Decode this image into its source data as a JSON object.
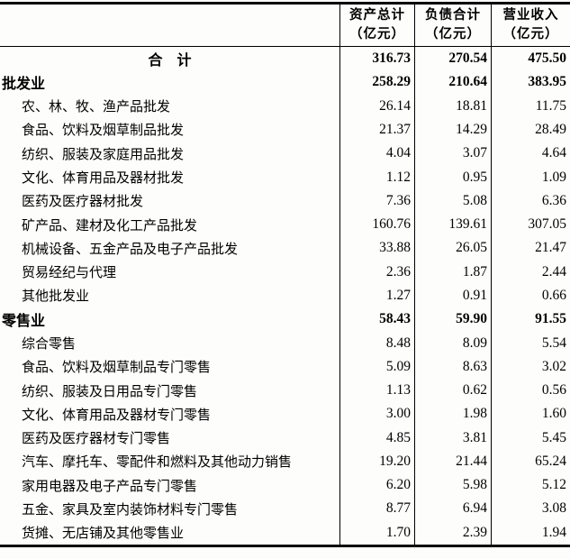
{
  "table": {
    "header": {
      "columns": [
        {
          "title": "资产总计",
          "unit": "（亿元）"
        },
        {
          "title": "负债合计",
          "unit": "（亿元）"
        },
        {
          "title": "营业收入",
          "unit": "（亿元）"
        }
      ]
    },
    "rows": [
      {
        "label": "合　计",
        "level": "total",
        "values": [
          "316.73",
          "270.54",
          "475.50"
        ]
      },
      {
        "label": "批发业",
        "level": "group",
        "values": [
          "258.29",
          "210.64",
          "383.95"
        ]
      },
      {
        "label": "农、林、牧、渔产品批发",
        "level": "item",
        "values": [
          "26.14",
          "18.81",
          "11.75"
        ]
      },
      {
        "label": "食品、饮料及烟草制品批发",
        "level": "item",
        "values": [
          "21.37",
          "14.29",
          "28.49"
        ]
      },
      {
        "label": "纺织、服装及家庭用品批发",
        "level": "item",
        "values": [
          "4.04",
          "3.07",
          "4.64"
        ]
      },
      {
        "label": "文化、体育用品及器材批发",
        "level": "item",
        "values": [
          "1.12",
          "0.95",
          "1.09"
        ]
      },
      {
        "label": "医药及医疗器材批发",
        "level": "item",
        "values": [
          "7.36",
          "5.08",
          "6.36"
        ]
      },
      {
        "label": "矿产品、建材及化工产品批发",
        "level": "item",
        "values": [
          "160.76",
          "139.61",
          "307.05"
        ]
      },
      {
        "label": "机械设备、五金产品及电子产品批发",
        "level": "item",
        "values": [
          "33.88",
          "26.05",
          "21.47"
        ]
      },
      {
        "label": "贸易经纪与代理",
        "level": "item",
        "values": [
          "2.36",
          "1.87",
          "2.44"
        ]
      },
      {
        "label": "其他批发业",
        "level": "item",
        "values": [
          "1.27",
          "0.91",
          "0.66"
        ]
      },
      {
        "label": "零售业",
        "level": "group",
        "values": [
          "58.43",
          "59.90",
          "91.55"
        ]
      },
      {
        "label": "综合零售",
        "level": "item",
        "values": [
          "8.48",
          "8.09",
          "5.54"
        ]
      },
      {
        "label": "食品、饮料及烟草制品专门零售",
        "level": "item",
        "values": [
          "5.09",
          "8.63",
          "3.02"
        ]
      },
      {
        "label": "纺织、服装及日用品专门零售",
        "level": "item",
        "values": [
          "1.13",
          "0.62",
          "0.56"
        ]
      },
      {
        "label": "文化、体育用品及器材专门零售",
        "level": "item",
        "values": [
          "3.00",
          "1.98",
          "1.60"
        ]
      },
      {
        "label": "医药及医疗器材专门零售",
        "level": "item",
        "values": [
          "4.85",
          "3.81",
          "5.45"
        ]
      },
      {
        "label": "汽车、摩托车、零配件和燃料及其他动力销售",
        "level": "item",
        "values": [
          "19.20",
          "21.44",
          "65.24"
        ]
      },
      {
        "label": "家用电器及电子产品专门零售",
        "level": "item",
        "values": [
          "6.20",
          "5.98",
          "5.12"
        ]
      },
      {
        "label": "五金、家具及室内装饰材料专门零售",
        "level": "item",
        "values": [
          "8.77",
          "6.94",
          "3.08"
        ]
      },
      {
        "label": "货摊、无店铺及其他零售业",
        "level": "item",
        "values": [
          "1.70",
          "2.39",
          "1.94"
        ]
      }
    ]
  }
}
